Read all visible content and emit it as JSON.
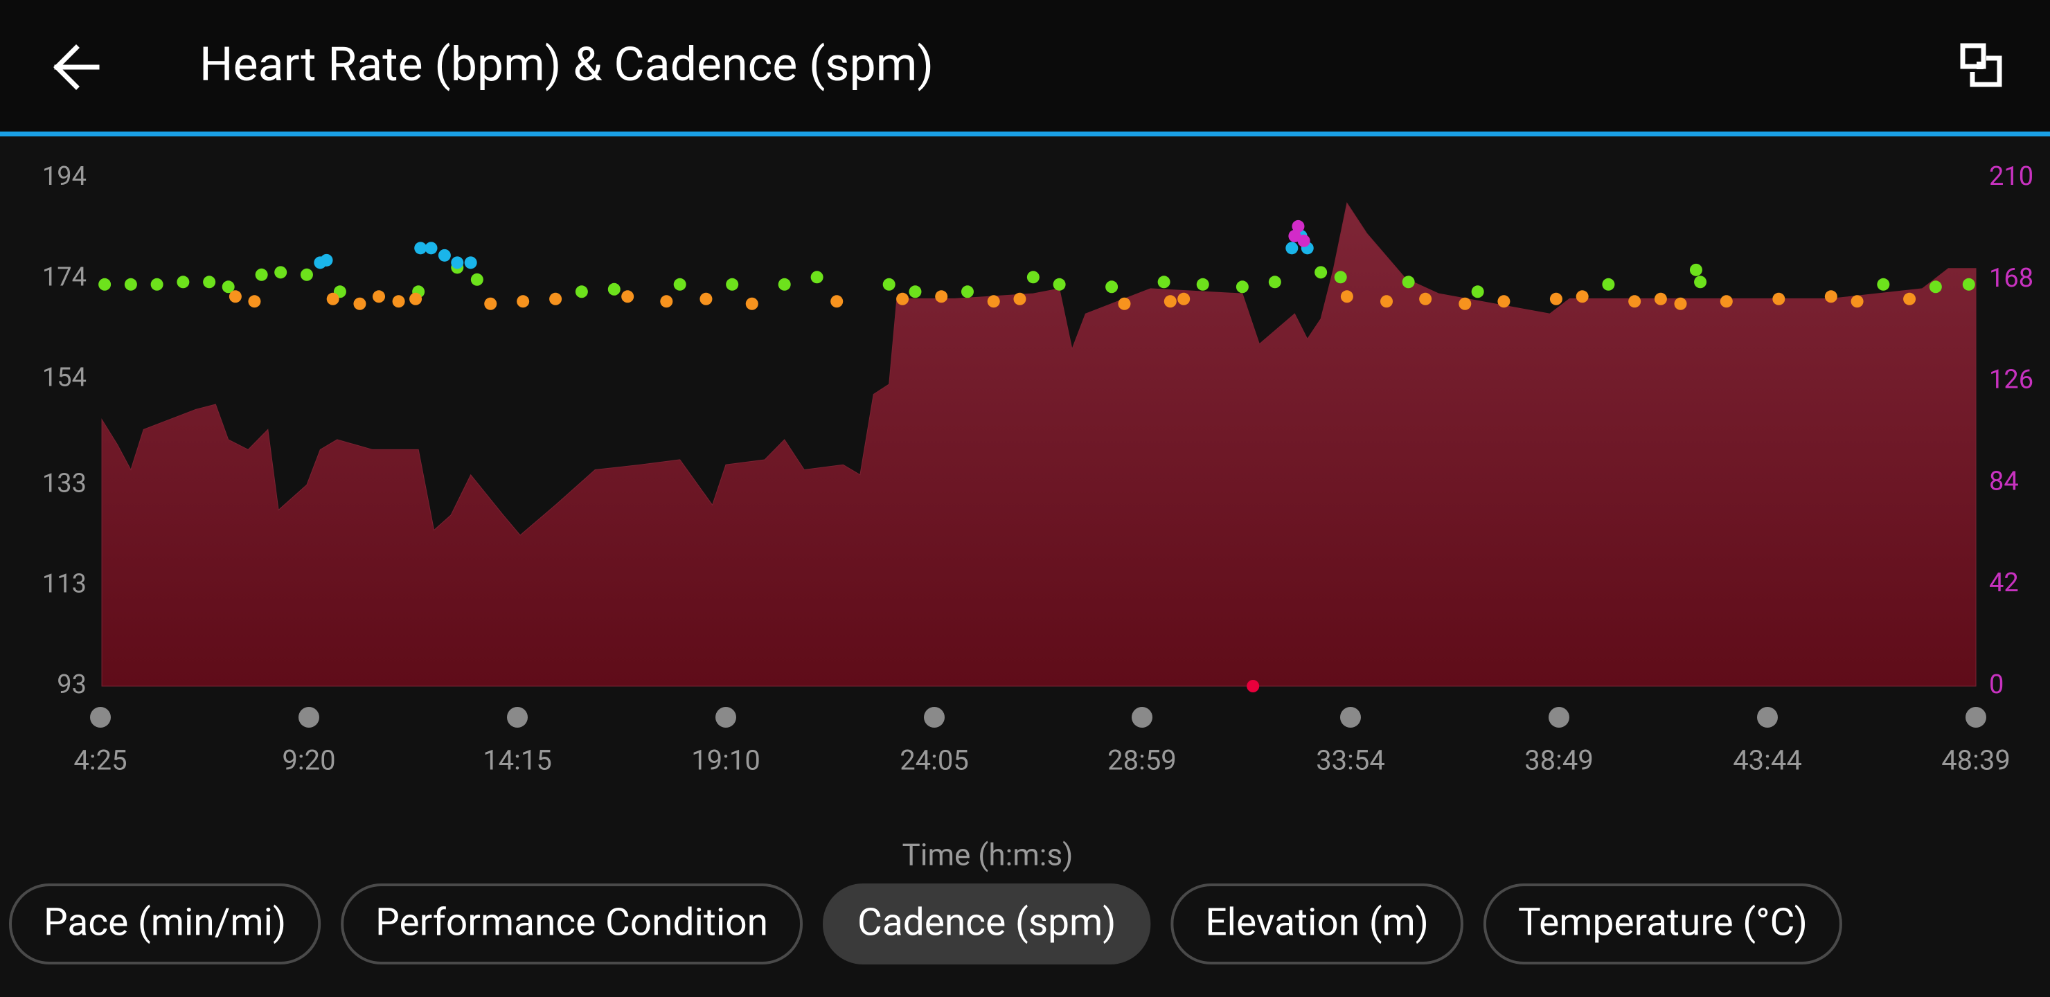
{
  "header": {
    "title": "Heart Rate (bpm) & Cadence (spm)"
  },
  "chart_data": {
    "type": "area",
    "x_label": "Time (h:m:s)",
    "xlim": [
      265,
      2919
    ],
    "xticks": [
      {
        "value": 265,
        "label": "4:25"
      },
      {
        "value": 560,
        "label": "9:20"
      },
      {
        "value": 855,
        "label": "14:15"
      },
      {
        "value": 1150,
        "label": "19:10"
      },
      {
        "value": 1445,
        "label": "24:05"
      },
      {
        "value": 1739,
        "label": "28:59"
      },
      {
        "value": 2034,
        "label": "33:54"
      },
      {
        "value": 2329,
        "label": "38:49"
      },
      {
        "value": 2624,
        "label": "43:44"
      },
      {
        "value": 2919,
        "label": "48:39"
      }
    ],
    "ylim": [
      93,
      194
    ],
    "yticks": [
      93,
      113,
      133,
      154,
      174,
      194
    ],
    "y2lim": [
      0,
      210
    ],
    "y2ticks": [
      0,
      42,
      84,
      126,
      168,
      210
    ],
    "y_tick_color": "#9a9a9a",
    "y2_tick_color": "#c832c0",
    "series": [
      {
        "type": "area",
        "color": "#7a2232",
        "x": [
          267,
          289,
          308,
          326,
          363,
          400,
          428,
          446,
          474,
          502,
          517,
          557,
          576,
          600,
          650,
          715,
          737,
          761,
          789,
          835,
          859,
          909,
          965,
          1029,
          1085,
          1131,
          1150,
          1205,
          1233,
          1261,
          1316,
          1340,
          1359,
          1381,
          1392,
          1474,
          1585,
          1622,
          1640,
          1659,
          1751,
          1881,
          1905,
          1955,
          1973,
          1992,
          2010,
          2029,
          2057,
          2112,
          2159,
          2316,
          2344,
          2529,
          2714,
          2843,
          2880,
          2919
        ],
        "values": [
          146,
          141,
          136,
          144,
          146,
          148,
          149,
          142,
          140,
          144,
          128,
          133,
          140,
          142,
          140,
          140,
          124,
          127,
          135,
          127,
          123,
          129,
          136,
          137,
          138,
          129,
          137,
          138,
          142,
          136,
          137,
          135,
          151,
          153,
          170,
          170,
          171,
          172,
          160,
          167,
          172,
          171,
          161,
          167,
          162,
          166,
          176,
          189,
          183,
          174,
          171,
          167,
          170,
          170,
          170,
          172,
          176,
          176
        ]
      },
      {
        "type": "scatter",
        "axis": "y2",
        "color": "#6de21c",
        "x": [
          271,
          308,
          345,
          382,
          419,
          446,
          493,
          520,
          557,
          604,
          715,
          770,
          798,
          946,
          992,
          1085,
          1159,
          1233,
          1279,
          1381,
          1418,
          1492,
          1585,
          1622,
          1696,
          1770,
          1825,
          1881,
          1927,
          1992,
          2020,
          2116,
          2214,
          2399,
          2523,
          2529,
          2788,
          2862,
          2909
        ],
        "values": [
          166,
          166,
          166,
          167,
          167,
          165,
          170,
          171,
          170,
          163,
          163,
          173,
          168,
          163,
          164,
          166,
          166,
          166,
          169,
          166,
          163,
          163,
          169,
          166,
          165,
          167,
          166,
          165,
          167,
          171,
          169,
          167,
          163,
          166,
          172,
          167,
          166,
          165,
          166
        ]
      },
      {
        "type": "scatter",
        "axis": "y2",
        "color": "#f7931e",
        "x": [
          456,
          483,
          594,
          632,
          659,
          687,
          711,
          817,
          863,
          909,
          1011,
          1066,
          1122,
          1187,
          1307,
          1400,
          1455,
          1529,
          1566,
          1714,
          1779,
          1798,
          2029,
          2085,
          2140,
          2196,
          2251,
          2325,
          2362,
          2436,
          2473,
          2501,
          2566,
          2640,
          2714,
          2751,
          2825
        ],
        "values": [
          161,
          159,
          160,
          158,
          161,
          159,
          160,
          158,
          159,
          160,
          161,
          159,
          160,
          158,
          159,
          160,
          161,
          159,
          160,
          158,
          159,
          160,
          161,
          159,
          160,
          158,
          159,
          160,
          161,
          159,
          160,
          158,
          159,
          160,
          161,
          159,
          160
        ]
      },
      {
        "type": "scatter",
        "axis": "y2",
        "color": "#1ab5ea",
        "x": [
          576,
          585,
          718,
          733,
          752,
          770,
          789,
          1951,
          1964,
          1973
        ],
        "values": [
          175,
          176,
          181,
          181,
          178,
          175,
          175,
          181,
          186,
          181
        ]
      },
      {
        "type": "scatter",
        "axis": "y2",
        "color": "#d22bc8",
        "x": [
          1955,
          1960,
          1968
        ],
        "values": [
          186,
          190,
          184
        ]
      },
      {
        "type": "scatter",
        "axis": "y2",
        "color": "#e8003c",
        "x": [
          1896
        ],
        "values": [
          0
        ]
      }
    ]
  },
  "tabs": [
    {
      "label": "Pace (min/mi)",
      "selected": false
    },
    {
      "label": "Performance Condition",
      "selected": false
    },
    {
      "label": "Cadence (spm)",
      "selected": true
    },
    {
      "label": "Elevation (m)",
      "selected": false
    },
    {
      "label": "Temperature (°C)",
      "selected": false
    }
  ]
}
